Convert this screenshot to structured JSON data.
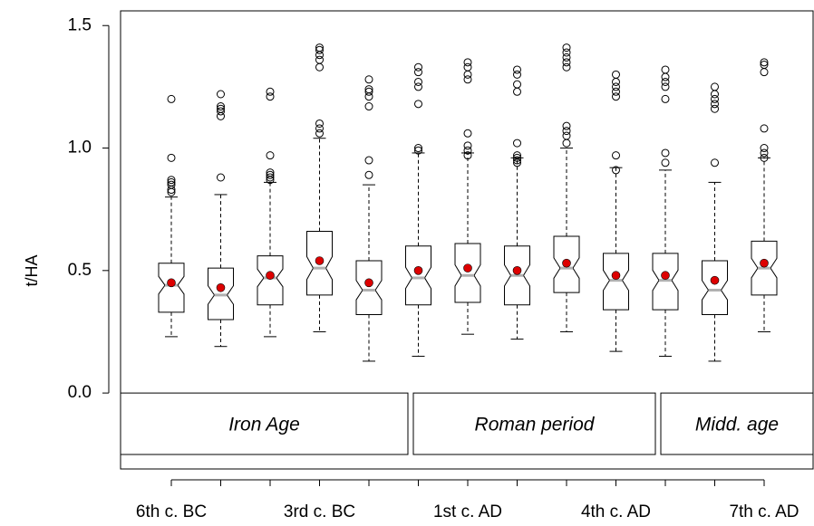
{
  "chart_data": {
    "type": "boxplot",
    "y_label": "t/HA",
    "categories": [
      "6th c. BC",
      null,
      null,
      "3rd c. BC",
      null,
      null,
      "1st c. AD",
      null,
      null,
      "4th c. AD",
      null,
      null,
      "7th c. AD"
    ],
    "ylim": [
      -0.31,
      1.56
    ],
    "yticks": [
      {
        "value": 0,
        "label": "0.0"
      },
      0.5,
      {
        "value": 1,
        "label": "1.0"
      },
      1.5
    ],
    "box_color": "#000000",
    "median_color": "#b0b0b0",
    "mean_color": "#dd0000",
    "notch": true,
    "annotations": [
      "Iron Age",
      "Roman period",
      "Midd. age"
    ],
    "boxes": [
      {
        "min": 0.23,
        "q1": 0.33,
        "median": 0.44,
        "q3": 0.53,
        "max": 0.8,
        "mean": 0.45,
        "outliers": [
          0.82,
          0.83,
          0.85,
          0.86,
          0.87,
          0.96,
          1.2
        ]
      },
      {
        "min": 0.19,
        "q1": 0.3,
        "median": 0.4,
        "q3": 0.51,
        "max": 0.81,
        "mean": 0.43,
        "outliers": [
          0.88,
          1.13,
          1.15,
          1.16,
          1.17,
          1.22
        ]
      },
      {
        "min": 0.23,
        "q1": 0.36,
        "median": 0.47,
        "q3": 0.56,
        "max": 0.86,
        "mean": 0.48,
        "outliers": [
          0.87,
          0.88,
          0.89,
          0.9,
          0.97,
          1.21,
          1.23
        ]
      },
      {
        "min": 0.25,
        "q1": 0.4,
        "median": 0.51,
        "q3": 0.66,
        "max": 1.04,
        "mean": 0.54,
        "outliers": [
          1.06,
          1.08,
          1.1,
          1.33,
          1.36,
          1.38,
          1.4,
          1.41
        ]
      },
      {
        "min": 0.13,
        "q1": 0.32,
        "median": 0.42,
        "q3": 0.54,
        "max": 0.85,
        "mean": 0.45,
        "outliers": [
          0.89,
          0.95,
          1.17,
          1.21,
          1.23,
          1.24,
          1.28
        ]
      },
      {
        "min": 0.15,
        "q1": 0.36,
        "median": 0.47,
        "q3": 0.6,
        "max": 0.98,
        "mean": 0.5,
        "outliers": [
          0.99,
          1.0,
          1.18,
          1.25,
          1.27,
          1.31,
          1.33
        ]
      },
      {
        "min": 0.24,
        "q1": 0.37,
        "median": 0.48,
        "q3": 0.61,
        "max": 0.98,
        "mean": 0.51,
        "outliers": [
          0.97,
          0.99,
          1.01,
          1.06,
          1.28,
          1.3,
          1.33,
          1.35
        ]
      },
      {
        "min": 0.22,
        "q1": 0.36,
        "median": 0.48,
        "q3": 0.6,
        "max": 0.96,
        "mean": 0.5,
        "outliers": [
          0.94,
          0.95,
          0.96,
          0.97,
          1.02,
          1.23,
          1.26,
          1.3,
          1.32
        ]
      },
      {
        "min": 0.25,
        "q1": 0.41,
        "median": 0.51,
        "q3": 0.64,
        "max": 1.0,
        "mean": 0.53,
        "outliers": [
          1.02,
          1.05,
          1.07,
          1.09,
          1.33,
          1.35,
          1.37,
          1.39,
          1.41
        ]
      },
      {
        "min": 0.17,
        "q1": 0.34,
        "median": 0.46,
        "q3": 0.57,
        "max": 0.92,
        "mean": 0.48,
        "outliers": [
          0.91,
          0.97,
          1.21,
          1.23,
          1.25,
          1.27,
          1.3
        ]
      },
      {
        "min": 0.15,
        "q1": 0.34,
        "median": 0.46,
        "q3": 0.57,
        "max": 0.91,
        "mean": 0.48,
        "outliers": [
          0.94,
          0.98,
          1.2,
          1.25,
          1.27,
          1.29,
          1.32
        ]
      },
      {
        "min": 0.13,
        "q1": 0.32,
        "median": 0.42,
        "q3": 0.54,
        "max": 0.86,
        "mean": 0.46,
        "outliers": [
          0.94,
          1.16,
          1.18,
          1.2,
          1.22,
          1.25
        ]
      },
      {
        "min": 0.25,
        "q1": 0.4,
        "median": 0.51,
        "q3": 0.62,
        "max": 0.96,
        "mean": 0.53,
        "outliers": [
          0.96,
          0.98,
          1.0,
          1.08,
          1.31,
          1.34,
          1.35
        ]
      }
    ]
  }
}
